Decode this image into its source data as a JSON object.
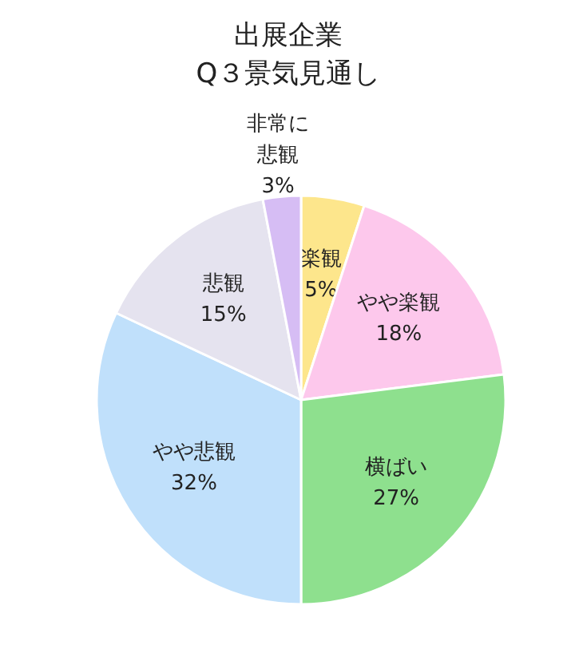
{
  "chart_data": {
    "type": "pie",
    "title": "出展企業\nQ３景気見通し",
    "categories": [
      "楽観",
      "やや楽観",
      "横ばい",
      "やや悲観",
      "悲観",
      "非常に悲観"
    ],
    "values": [
      5,
      18,
      27,
      32,
      15,
      3
    ],
    "value_labels": [
      "5%",
      "18%",
      "27%",
      "32%",
      "15%",
      "3%"
    ],
    "colors": [
      "#fde68c",
      "#fdc8ec",
      "#8ee08e",
      "#c0e0fb",
      "#e5e3ef",
      "#d6bdf4"
    ],
    "legend": false
  }
}
